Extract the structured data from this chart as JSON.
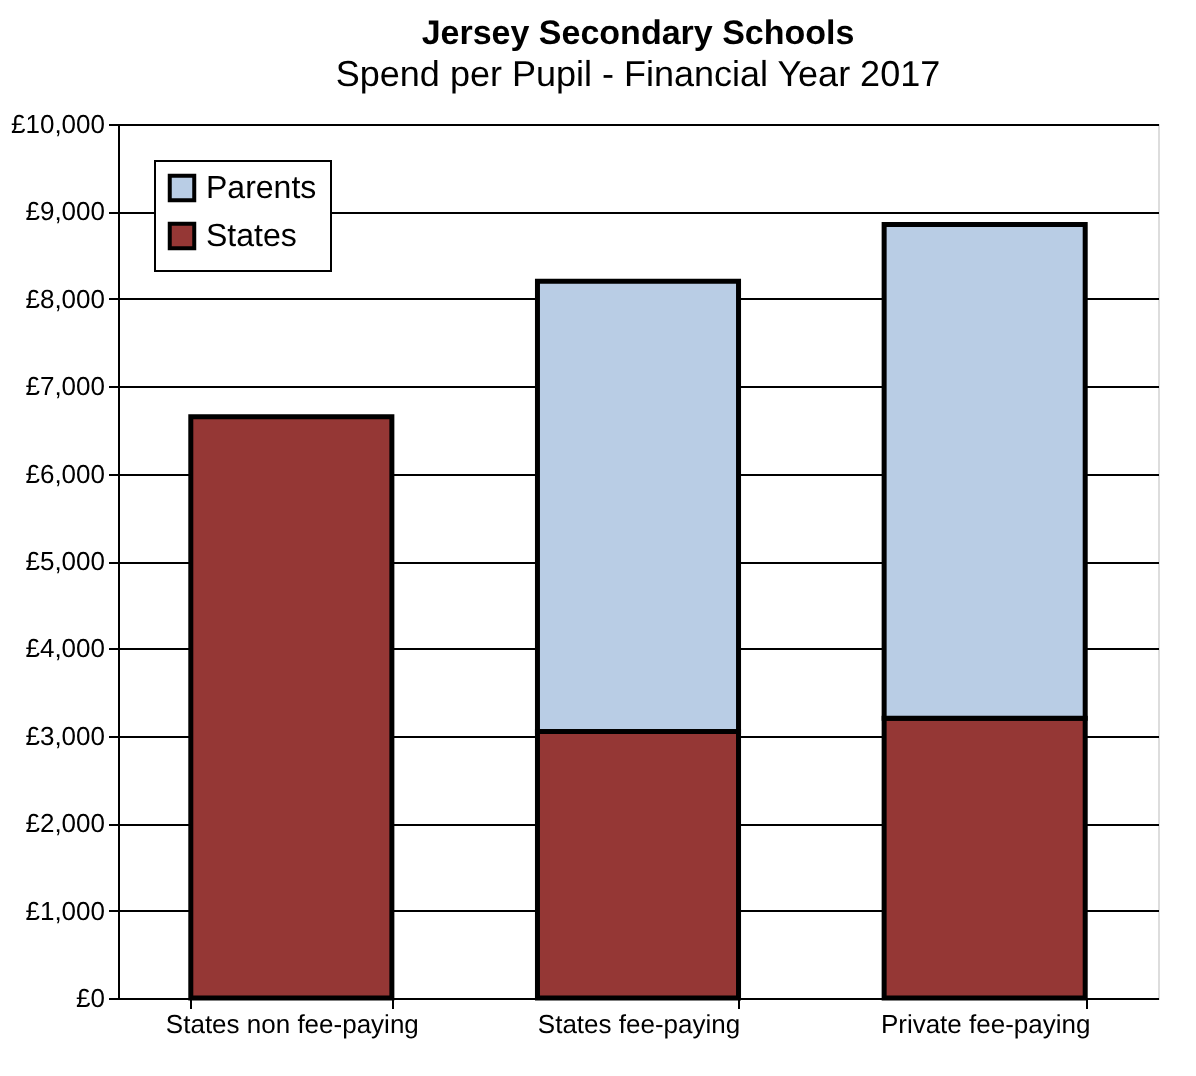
{
  "chart_data": {
    "type": "bar",
    "title": "Jersey Secondary Schools",
    "subtitle": "Spend per Pupil - Financial Year 2017",
    "categories": [
      "States non fee-paying",
      "States fee-paying",
      "Private fee-paying"
    ],
    "stacked": true,
    "series": [
      {
        "name": "States",
        "color": "#953735",
        "values": [
          6650,
          3050,
          3200
        ]
      },
      {
        "name": "Parents",
        "color": "#b9cde5",
        "values": [
          null,
          5150,
          5650
        ]
      }
    ],
    "ylim": [
      0,
      10000
    ],
    "yticks": [
      {
        "value": 0,
        "label": "£0"
      },
      {
        "value": 1000,
        "label": "£1,000"
      },
      {
        "value": 2000,
        "label": "£2,000"
      },
      {
        "value": 3000,
        "label": "£3,000"
      },
      {
        "value": 4000,
        "label": "£4,000"
      },
      {
        "value": 5000,
        "label": "£5,000"
      },
      {
        "value": 6000,
        "label": "£6,000"
      },
      {
        "value": 7000,
        "label": "£7,000"
      },
      {
        "value": 8000,
        "label": "£8,000"
      },
      {
        "value": 9000,
        "label": "£9,000"
      },
      {
        "value": 10000,
        "label": "£10,000"
      }
    ],
    "grid": "y",
    "legend": "top left"
  }
}
